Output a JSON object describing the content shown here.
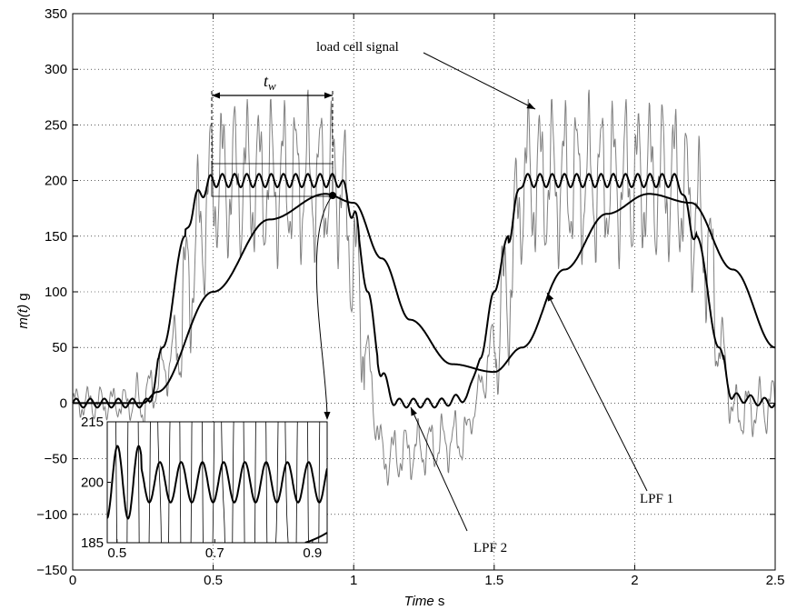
{
  "chart_data": {
    "type": "line",
    "xlabel": "Time s",
    "xlabel_italic": "Time",
    "xlabel_unit": " s",
    "ylabel": "m(t) g",
    "ylabel_italic": "m(t)",
    "ylabel_unit": "  g",
    "xlim": [
      0,
      2.5
    ],
    "ylim": [
      -150,
      350
    ],
    "grid": true,
    "xticks": [
      0,
      0.5,
      1,
      1.5,
      2,
      2.5
    ],
    "xtick_labels": [
      "0",
      "0.5",
      "1",
      "1.5",
      "2",
      "2.5"
    ],
    "yticks": [
      -150,
      -100,
      -50,
      0,
      50,
      100,
      150,
      200,
      250,
      300,
      350
    ],
    "ytick_labels": [
      "−150",
      "−100",
      "−50",
      "0",
      "50",
      "100",
      "150",
      "200",
      "250",
      "300",
      "350"
    ],
    "annotations": {
      "load_cell": "load cell signal",
      "lpf1": "LPF 1",
      "lpf2": "LPF 2",
      "tw": "t",
      "tw_sub": "w"
    },
    "series": [
      {
        "name": "load cell signal",
        "color": "#808080",
        "description": "noisy oscillating raw signal",
        "x": [
          0,
          0.25,
          0.35,
          0.45,
          0.5,
          0.95,
          1.0,
          1.1,
          1.4,
          1.55,
          1.6,
          2.15,
          2.25,
          2.35,
          2.5
        ],
        "y": [
          0,
          0,
          40,
          150,
          200,
          200,
          130,
          -50,
          -30,
          100,
          200,
          200,
          150,
          -10,
          0
        ]
      },
      {
        "name": "LPF 2",
        "color": "#000000",
        "x": [
          0,
          0.27,
          0.32,
          0.4,
          0.44,
          0.5,
          0.95,
          1.0,
          1.05,
          1.1,
          1.15,
          1.3,
          1.4,
          1.45,
          1.5,
          1.55,
          1.6,
          2.15,
          2.22,
          2.3,
          2.35,
          2.5
        ],
        "y": [
          0,
          0,
          50,
          150,
          185,
          200,
          200,
          170,
          100,
          25,
          0,
          0,
          5,
          40,
          100,
          150,
          200,
          200,
          150,
          50,
          5,
          0
        ]
      },
      {
        "name": "LPF 1",
        "color": "#000000",
        "x": [
          0,
          0.25,
          0.3,
          0.5,
          0.7,
          0.9,
          1.0,
          1.1,
          1.2,
          1.35,
          1.5,
          1.6,
          1.75,
          1.9,
          2.05,
          2.2,
          2.35,
          2.5
        ],
        "y": [
          0,
          0,
          10,
          100,
          165,
          188,
          180,
          130,
          75,
          35,
          28,
          50,
          120,
          170,
          188,
          180,
          120,
          50
        ]
      }
    ],
    "inset": {
      "xlim": [
        0.48,
        0.93
      ],
      "ylim": [
        185,
        215
      ],
      "xticks": [
        0.5,
        0.7,
        0.9
      ],
      "xtick_labels": [
        "0.5",
        "0.7",
        "0.9"
      ],
      "yticks": [
        185,
        200,
        215
      ],
      "ytick_labels": [
        "185",
        "200",
        "215"
      ]
    }
  }
}
